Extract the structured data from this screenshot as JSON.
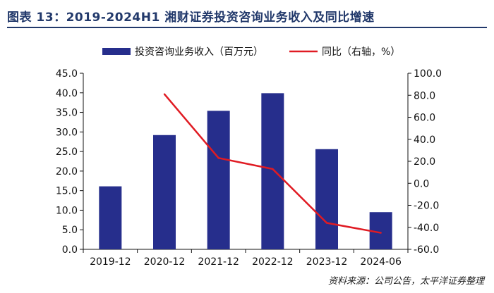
{
  "header": {
    "title": "图表 13：2019-2024H1 湘财证券投资咨询业务收入及同比增速"
  },
  "source": "资料来源：公司公告，太平洋证券整理",
  "colors": {
    "bar": "#262e8c",
    "line": "#e01b23",
    "title": "#22396b"
  },
  "chart_data": {
    "type": "bar",
    "categories": [
      "2019-12",
      "2020-12",
      "2021-12",
      "2022-12",
      "2023-12",
      "2024-06"
    ],
    "series": [
      {
        "name": "投资咨询业务收入（百万元）",
        "type": "bar",
        "axis": "left",
        "values": [
          16.1,
          29.2,
          35.4,
          39.9,
          25.6,
          9.5
        ]
      },
      {
        "name": "同比（右轴，%）",
        "type": "line",
        "axis": "right",
        "values": [
          null,
          81.0,
          23.0,
          13.0,
          -36.0,
          -45.0
        ]
      }
    ],
    "ylim_left": [
      0,
      45
    ],
    "yticks_left": [
      "0.0",
      "5.0",
      "10.0",
      "15.0",
      "20.0",
      "25.0",
      "30.0",
      "35.0",
      "40.0",
      "45.0"
    ],
    "ylim_right": [
      -60,
      100
    ],
    "yticks_right": [
      "-60.0",
      "-40.0",
      "-20.0",
      "0.0",
      "20.0",
      "40.0",
      "60.0",
      "80.0",
      "100.0"
    ],
    "legend_position": "top",
    "grid": false
  }
}
